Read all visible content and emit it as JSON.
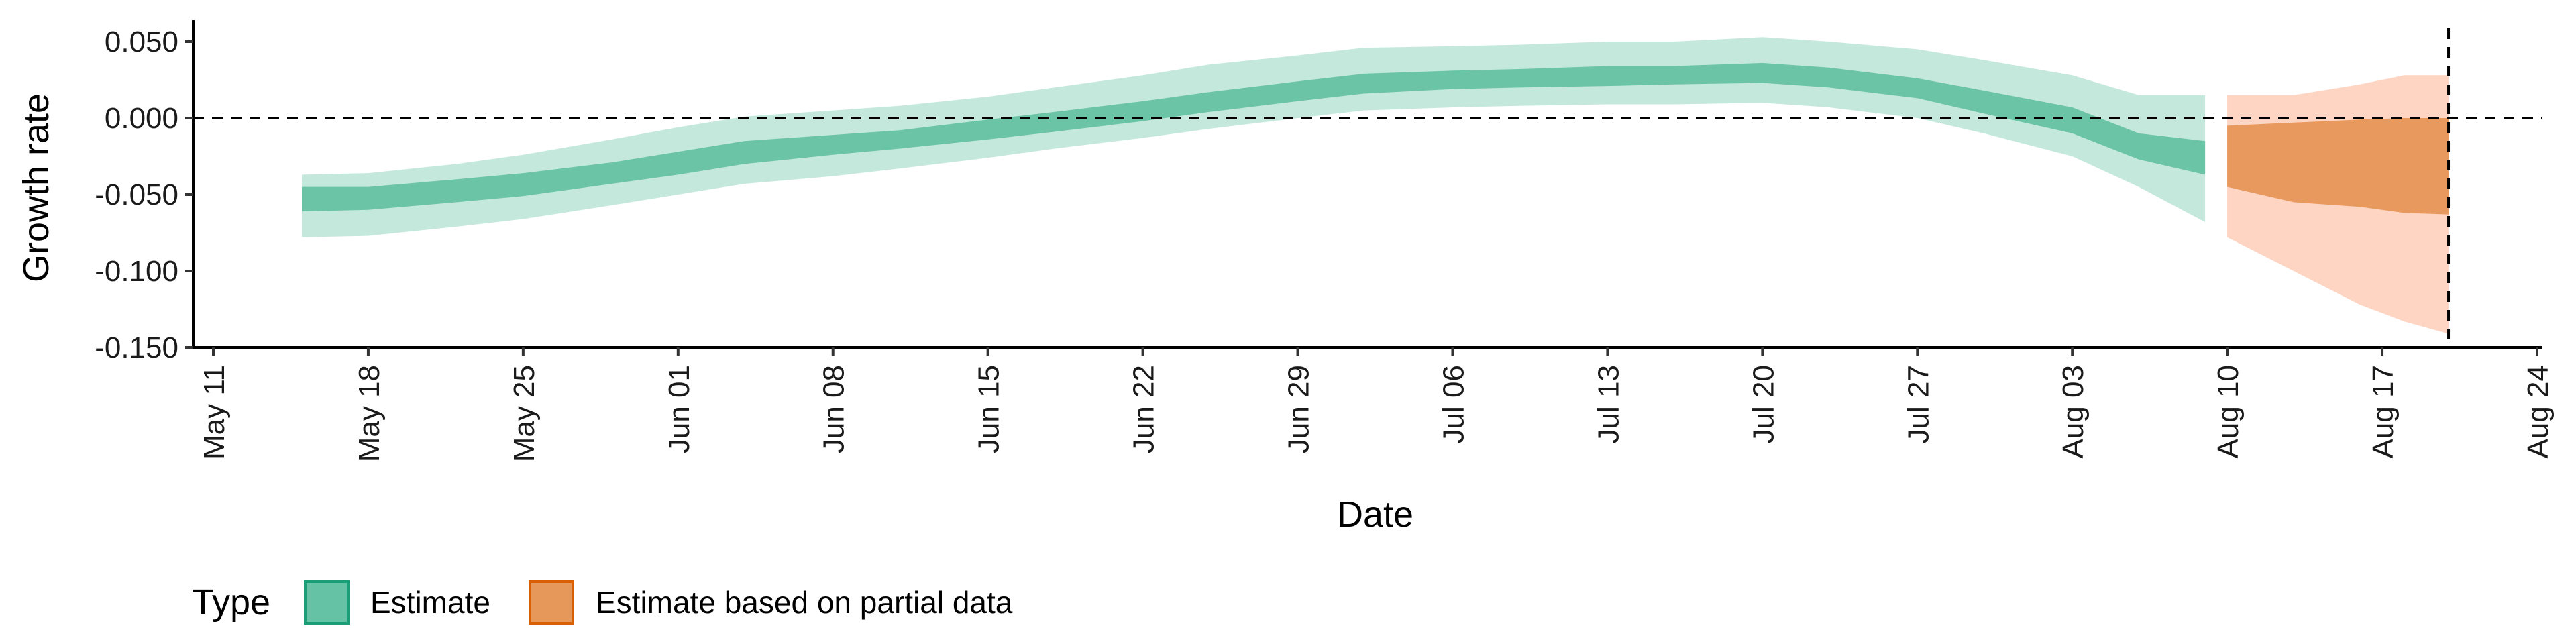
{
  "chart_data": {
    "type": "area",
    "xlabel": "Date",
    "ylabel": "Growth rate",
    "x_ticks": [
      "May 11",
      "May 18",
      "May 25",
      "Jun 01",
      "Jun 08",
      "Jun 15",
      "Jun 22",
      "Jun 29",
      "Jul 06",
      "Jul 13",
      "Jul 20",
      "Jul 27",
      "Aug 03",
      "Aug 10",
      "Aug 17",
      "Aug 24"
    ],
    "x_tick_dates": [
      "2020-05-11",
      "2020-05-18",
      "2020-05-25",
      "2020-06-01",
      "2020-06-08",
      "2020-06-15",
      "2020-06-22",
      "2020-06-29",
      "2020-07-06",
      "2020-07-13",
      "2020-07-20",
      "2020-07-27",
      "2020-08-03",
      "2020-08-10",
      "2020-08-17",
      "2020-08-24"
    ],
    "y_ticks": [
      "0.050",
      "0.000",
      "-0.050",
      "-0.100",
      "-0.150"
    ],
    "y_tick_values": [
      0.05,
      0.0,
      -0.05,
      -0.1,
      -0.15
    ],
    "xlim": [
      "2020-05-11",
      "2020-08-24"
    ],
    "ylim": [
      -0.15,
      0.06
    ],
    "reference_lines": {
      "horizontal_y": 0.0,
      "vertical_x": "2020-08-20"
    },
    "legend": {
      "title": "Type",
      "position": "bottom-left",
      "entries": [
        "Estimate",
        "Estimate based on partial data"
      ]
    },
    "series": [
      {
        "name": "Estimate",
        "color": "#66c2a5",
        "outline": "#1b9e77",
        "points": [
          {
            "date": "2020-05-15",
            "lo90": -0.078,
            "lo50": -0.061,
            "hi50": -0.045,
            "hi90": -0.037
          },
          {
            "date": "2020-05-18",
            "lo90": -0.077,
            "lo50": -0.06,
            "hi50": -0.045,
            "hi90": -0.036
          },
          {
            "date": "2020-05-22",
            "lo90": -0.071,
            "lo50": -0.055,
            "hi50": -0.04,
            "hi90": -0.03
          },
          {
            "date": "2020-05-25",
            "lo90": -0.066,
            "lo50": -0.051,
            "hi50": -0.036,
            "hi90": -0.024
          },
          {
            "date": "2020-05-29",
            "lo90": -0.057,
            "lo50": -0.043,
            "hi50": -0.029,
            "hi90": -0.014
          },
          {
            "date": "2020-06-01",
            "lo90": -0.05,
            "lo50": -0.037,
            "hi50": -0.022,
            "hi90": -0.006
          },
          {
            "date": "2020-06-04",
            "lo90": -0.043,
            "lo50": -0.03,
            "hi50": -0.015,
            "hi90": 0.001
          },
          {
            "date": "2020-06-08",
            "lo90": -0.038,
            "lo50": -0.024,
            "hi50": -0.011,
            "hi90": 0.005
          },
          {
            "date": "2020-06-11",
            "lo90": -0.033,
            "lo50": -0.02,
            "hi50": -0.008,
            "hi90": 0.008
          },
          {
            "date": "2020-06-15",
            "lo90": -0.026,
            "lo50": -0.014,
            "hi50": -0.001,
            "hi90": 0.014
          },
          {
            "date": "2020-06-18",
            "lo90": -0.02,
            "lo50": -0.009,
            "hi50": 0.004,
            "hi90": 0.02
          },
          {
            "date": "2020-06-22",
            "lo90": -0.013,
            "lo50": -0.002,
            "hi50": 0.011,
            "hi90": 0.028
          },
          {
            "date": "2020-06-25",
            "lo90": -0.007,
            "lo50": 0.004,
            "hi50": 0.017,
            "hi90": 0.035
          },
          {
            "date": "2020-06-29",
            "lo90": 0.0,
            "lo50": 0.011,
            "hi50": 0.024,
            "hi90": 0.041
          },
          {
            "date": "2020-07-02",
            "lo90": 0.005,
            "lo50": 0.016,
            "hi50": 0.029,
            "hi90": 0.046
          },
          {
            "date": "2020-07-06",
            "lo90": 0.007,
            "lo50": 0.019,
            "hi50": 0.031,
            "hi90": 0.047
          },
          {
            "date": "2020-07-09",
            "lo90": 0.008,
            "lo50": 0.02,
            "hi50": 0.032,
            "hi90": 0.048
          },
          {
            "date": "2020-07-13",
            "lo90": 0.009,
            "lo50": 0.021,
            "hi50": 0.034,
            "hi90": 0.05
          },
          {
            "date": "2020-07-16",
            "lo90": 0.009,
            "lo50": 0.022,
            "hi50": 0.034,
            "hi90": 0.05
          },
          {
            "date": "2020-07-20",
            "lo90": 0.01,
            "lo50": 0.023,
            "hi50": 0.036,
            "hi90": 0.053
          },
          {
            "date": "2020-07-23",
            "lo90": 0.007,
            "lo50": 0.02,
            "hi50": 0.033,
            "hi90": 0.05
          },
          {
            "date": "2020-07-27",
            "lo90": 0.0,
            "lo50": 0.013,
            "hi50": 0.026,
            "hi90": 0.045
          },
          {
            "date": "2020-07-30",
            "lo90": -0.01,
            "lo50": 0.003,
            "hi50": 0.018,
            "hi90": 0.038
          },
          {
            "date": "2020-08-03",
            "lo90": -0.025,
            "lo50": -0.01,
            "hi50": 0.007,
            "hi90": 0.028
          },
          {
            "date": "2020-08-06",
            "lo90": -0.045,
            "lo50": -0.027,
            "hi50": -0.01,
            "hi90": 0.015
          },
          {
            "date": "2020-08-09",
            "lo90": -0.068,
            "lo50": -0.037,
            "hi50": -0.015,
            "hi90": 0.015
          }
        ]
      },
      {
        "name": "Estimate based on partial data",
        "color": "#fc8d62",
        "band_color": "#e6975a",
        "outline": "#d95f02",
        "points": [
          {
            "date": "2020-08-10",
            "lo90": -0.078,
            "lo50": -0.045,
            "hi50": -0.005,
            "hi90": 0.015
          },
          {
            "date": "2020-08-13",
            "lo90": -0.1,
            "lo50": -0.055,
            "hi50": -0.003,
            "hi90": 0.015
          },
          {
            "date": "2020-08-16",
            "lo90": -0.122,
            "lo50": -0.058,
            "hi50": -0.001,
            "hi90": 0.022
          },
          {
            "date": "2020-08-18",
            "lo90": -0.133,
            "lo50": -0.062,
            "hi50": 0.0,
            "hi90": 0.028
          },
          {
            "date": "2020-08-20",
            "lo90": -0.141,
            "lo50": -0.063,
            "hi50": 0.0,
            "hi90": 0.028
          }
        ]
      }
    ]
  }
}
